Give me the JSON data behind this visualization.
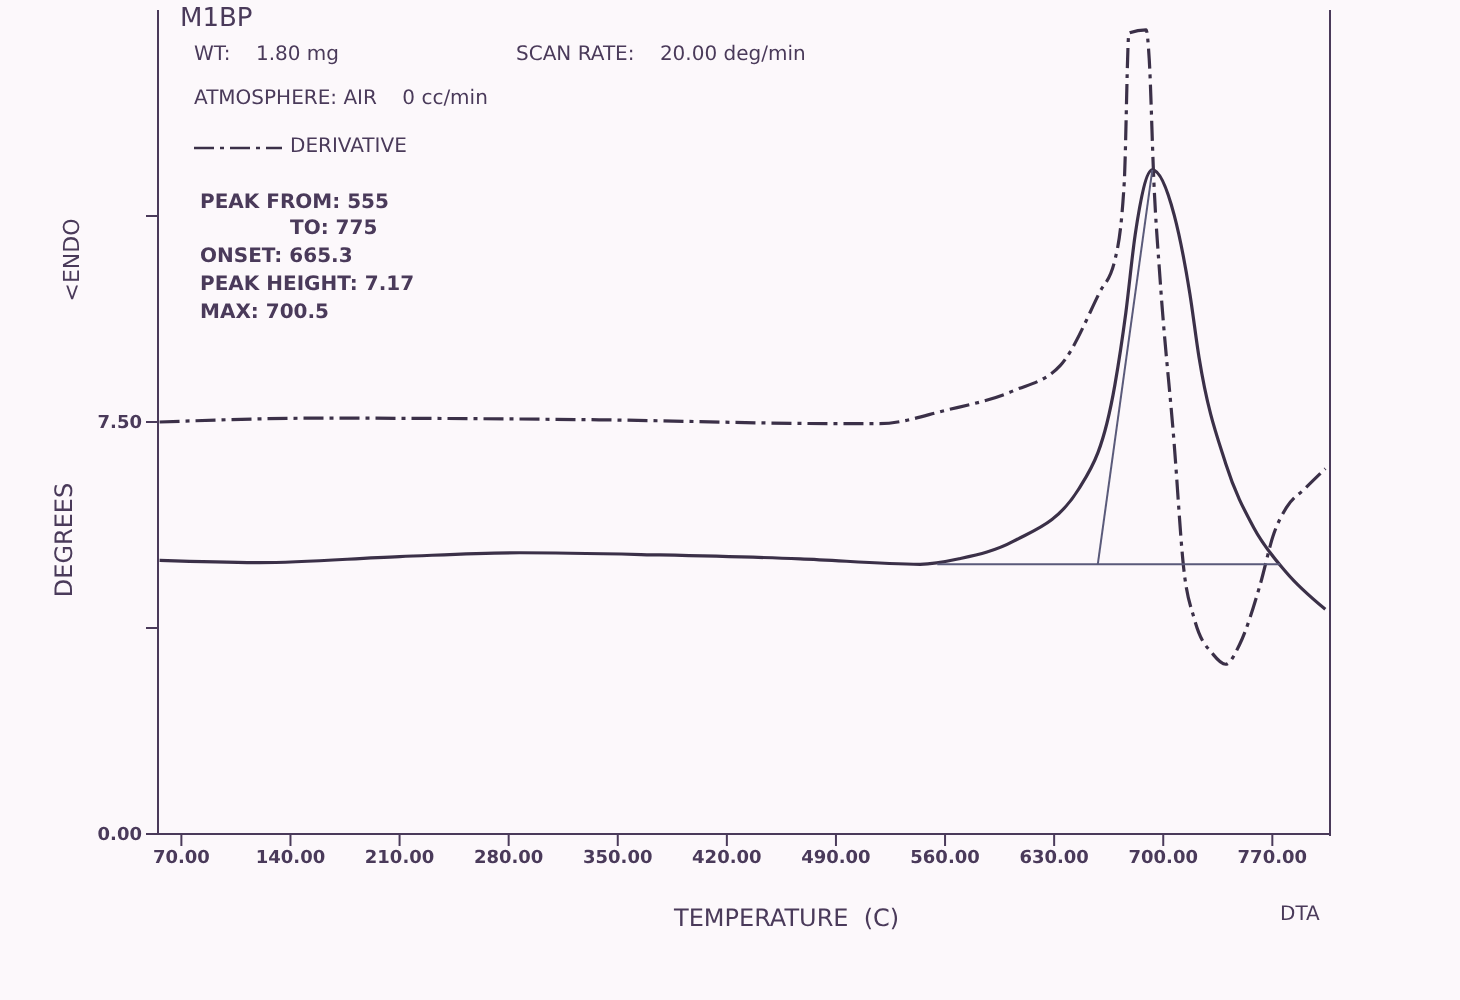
{
  "chart_data": {
    "type": "line",
    "title": "M1BP",
    "xlabel": "TEMPERATURE  (C)",
    "ylabel": "DEGREES",
    "annotations": [
      "WT:    1.80 mg",
      "SCAN RATE:    20.00 deg/min",
      "ATMOSPHERE: AIR    0 cc/min",
      "PEAK FROM: 555",
      "TO: 775",
      "ONSET: 665.3",
      "PEAK HEIGHT: 7.17",
      "MAX: 700.5",
      "<ENDO",
      "DTA"
    ],
    "xlim": [
      55,
      807
    ],
    "ylim": [
      0,
      15
    ],
    "xticks": [
      {
        "value": 70,
        "label": "70.00"
      },
      {
        "value": 140,
        "label": "140.00"
      },
      {
        "value": 210,
        "label": "210.00"
      },
      {
        "value": 280,
        "label": "280.00"
      },
      {
        "value": 350,
        "label": "350.00"
      },
      {
        "value": 420,
        "label": "420.00"
      },
      {
        "value": 490,
        "label": "490.00"
      },
      {
        "value": 560,
        "label": "560.00"
      },
      {
        "value": 630,
        "label": "630.00"
      },
      {
        "value": 700,
        "label": "700.00"
      },
      {
        "value": 770,
        "label": "770.00"
      }
    ],
    "yticks": [
      {
        "value": 0,
        "label": "0.00"
      },
      {
        "value": 3.75,
        "label": null
      },
      {
        "value": 7.5,
        "label": "7.50"
      },
      {
        "value": 11.25,
        "label": null
      }
    ],
    "legend": "top left",
    "marker": "none",
    "series": [
      {
        "color": "#3b3048",
        "line_style": "solid",
        "x": [
          56,
          120,
          210,
          287,
          377,
          467,
          544,
          569,
          604,
          646,
          669,
          676,
          682,
          693,
          707,
          717,
          723,
          740,
          758,
          779,
          804
        ],
        "values": [
          4.98,
          4.94,
          5.05,
          5.12,
          5.08,
          5.01,
          4.91,
          5.01,
          5.33,
          6.29,
          8.18,
          9.49,
          10.91,
          12.09,
          11.27,
          9.85,
          8.67,
          6.75,
          5.58,
          4.76,
          4.09
        ]
      },
      {
        "name": "DERIVATIVE",
        "color": "#3b3048",
        "line_style": "dashed",
        "x": [
          56,
          159,
          338,
          492,
          518,
          560,
          604,
          634,
          659,
          669,
          675,
          678,
          689,
          691,
          694,
          698,
          707,
          713,
          720,
          732,
          740,
          749,
          762,
          771,
          779,
          791,
          804
        ],
        "values": [
          7.5,
          7.57,
          7.54,
          7.47,
          7.47,
          7.71,
          8.07,
          8.53,
          9.85,
          10.45,
          11.87,
          14.58,
          14.64,
          14.11,
          11.87,
          10.09,
          7.11,
          4.87,
          3.91,
          3.27,
          3.09,
          3.45,
          4.52,
          5.47,
          5.94,
          6.29,
          6.65
        ]
      },
      {
        "color": "#5a5a7a",
        "line_style": "solid",
        "x": [
          555,
          775
        ],
        "values": [
          4.91,
          4.91
        ]
      },
      {
        "color": "#5a5a7a",
        "line_style": "solid",
        "x": [
          658,
          693
        ],
        "values": [
          4.91,
          12.09
        ]
      }
    ]
  }
}
